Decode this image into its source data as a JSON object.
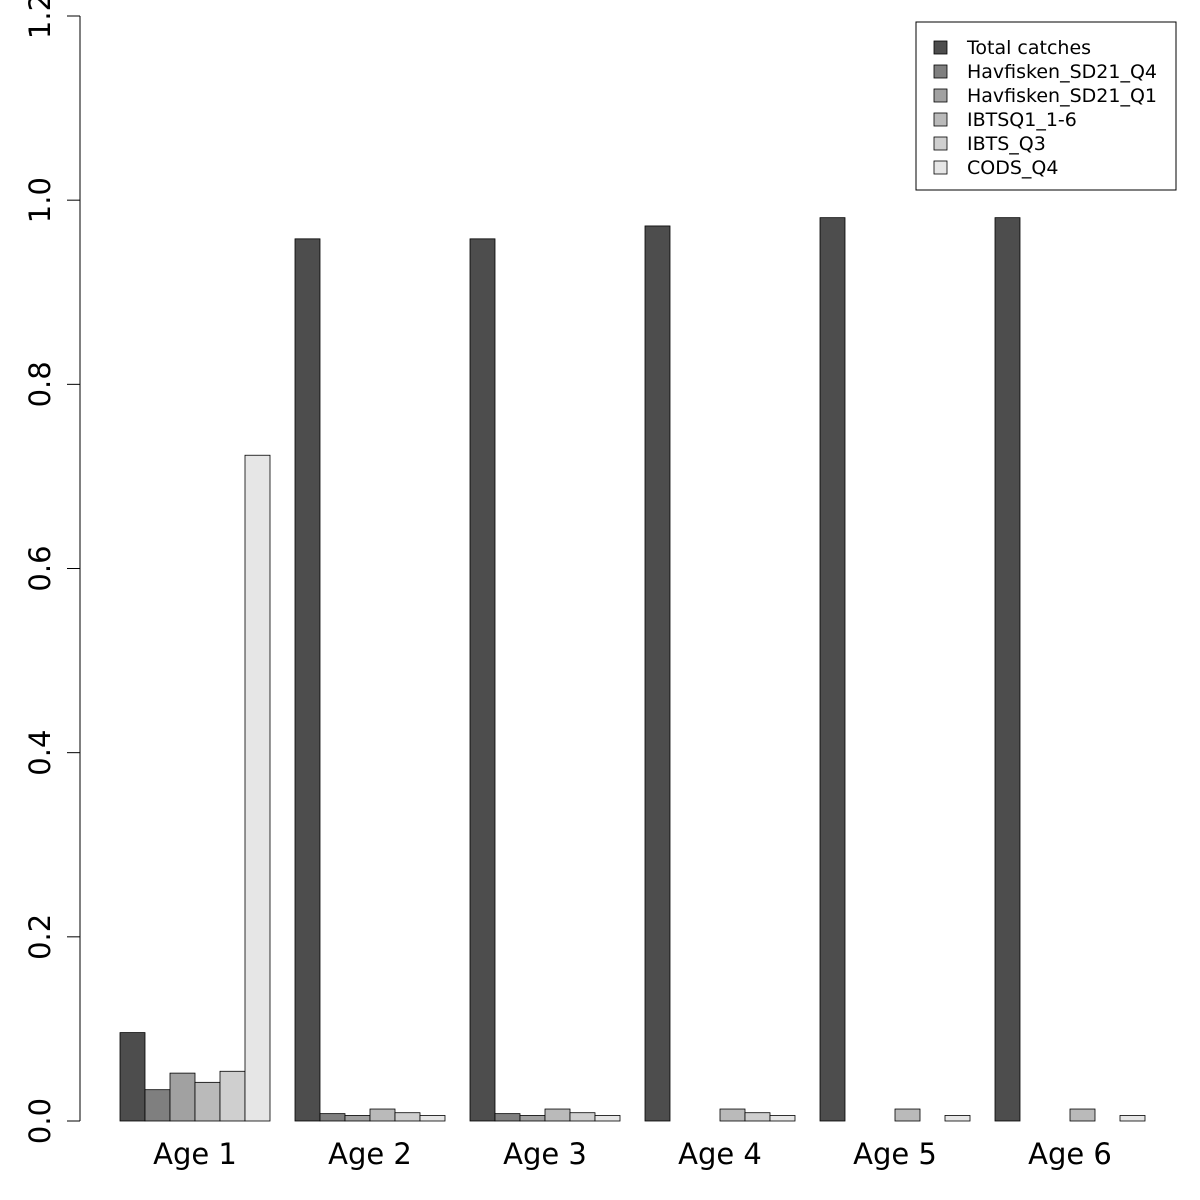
{
  "chart_data": {
    "type": "bar",
    "categories": [
      "Age 1",
      "Age 2",
      "Age 3",
      "Age 4",
      "Age 5",
      "Age 6"
    ],
    "ylim": [
      0,
      1.2
    ],
    "yticks": [
      0.0,
      0.2,
      0.4,
      0.6,
      0.8,
      1.0,
      1.2
    ],
    "ytick_labels": [
      "0.0",
      "0.2",
      "0.4",
      "0.6",
      "0.8",
      "1.0",
      "1.2"
    ],
    "legend_position": "top-right",
    "grid": false,
    "series": [
      {
        "name": "Total catches",
        "color": "#4d4d4d",
        "values": [
          0.096,
          0.958,
          0.958,
          0.972,
          0.981,
          0.981
        ]
      },
      {
        "name": "Havfisken_SD21_Q4",
        "color": "#7f7f7f",
        "values": [
          0.034,
          0.008,
          0.008,
          0.0,
          0.0,
          0.0
        ]
      },
      {
        "name": "Havfisken_SD21_Q1",
        "color": "#a1a1a1",
        "values": [
          0.052,
          0.006,
          0.006,
          0.0,
          0.0,
          0.0
        ]
      },
      {
        "name": "IBTSQ1_1-6",
        "color": "#bababa",
        "values": [
          0.042,
          0.013,
          0.013,
          0.013,
          0.013,
          0.013
        ]
      },
      {
        "name": "IBTS_Q3",
        "color": "#cfcfcf",
        "values": [
          0.054,
          0.009,
          0.009,
          0.009,
          0.0,
          0.0
        ]
      },
      {
        "name": "CODS_Q4",
        "color": "#e6e6e6",
        "values": [
          0.723,
          0.006,
          0.006,
          0.006,
          0.006,
          0.006
        ]
      }
    ]
  }
}
